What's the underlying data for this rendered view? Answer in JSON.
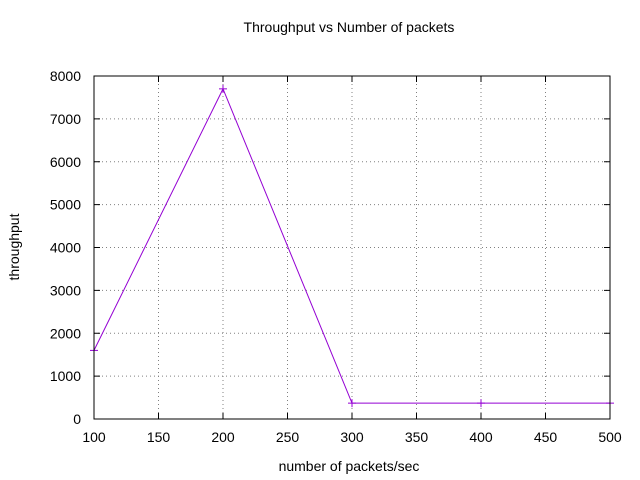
{
  "chart_data": {
    "type": "line",
    "title": "Throughput vs Number of packets",
    "xlabel": "number of packets/sec",
    "ylabel": "throughput",
    "xlim": [
      100,
      500
    ],
    "ylim": [
      0,
      8000
    ],
    "x_ticks": [
      100,
      150,
      200,
      250,
      300,
      350,
      400,
      450,
      500
    ],
    "y_ticks": [
      0,
      1000,
      2000,
      3000,
      4000,
      5000,
      6000,
      7000,
      8000
    ],
    "grid": true,
    "series": [
      {
        "color": "#9400d3",
        "marker": "plus",
        "x": [
          100,
          200,
          300,
          400,
          500
        ],
        "y": [
          1600,
          7700,
          370,
          370,
          370
        ]
      }
    ]
  }
}
